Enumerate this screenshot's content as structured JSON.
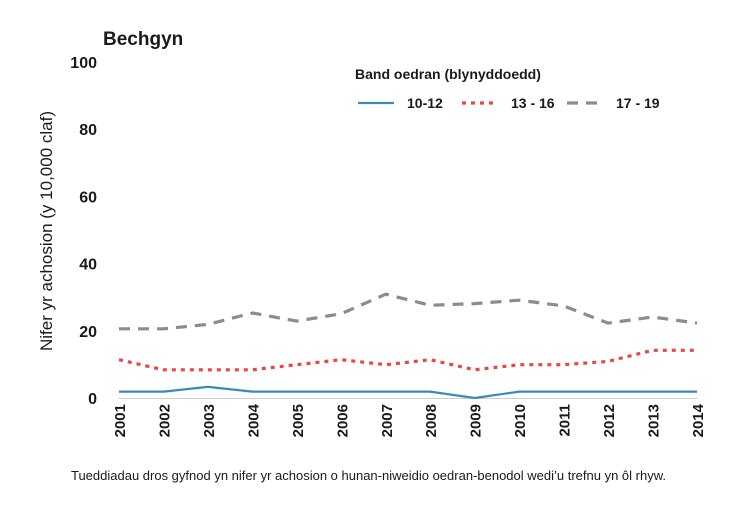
{
  "chart_data": {
    "type": "line",
    "title": "Bechgyn",
    "xlabel": "",
    "ylabel": "Nifer yr achosion (y 10,000 claf)",
    "ylim": [
      0,
      100
    ],
    "yticks": [
      "0",
      "20",
      "40",
      "60",
      "80",
      "100"
    ],
    "x": [
      "2001",
      "2002",
      "2003",
      "2004",
      "2005",
      "2006",
      "2007",
      "2008",
      "2009",
      "2010",
      "2011",
      "2012",
      "2013",
      "2014"
    ],
    "legend": {
      "title": "Band oedran (blynyddoedd)",
      "position": "top-right"
    },
    "series": [
      {
        "name": "10-12",
        "style": "solid",
        "color": "#3d8ab8",
        "values": [
          1.9,
          1.9,
          3.3,
          1.9,
          1.9,
          1.9,
          1.9,
          1.9,
          0.0,
          1.9,
          1.9,
          1.9,
          1.9,
          1.9
        ]
      },
      {
        "name": "13 - 16",
        "style": "dotted",
        "color": "#e8474a",
        "values": [
          11.4,
          8.4,
          8.4,
          8.4,
          9.9,
          11.4,
          9.9,
          11.4,
          8.4,
          9.9,
          9.9,
          10.9,
          14.2,
          14.2
        ]
      },
      {
        "name": "17 - 19",
        "style": "dashed",
        "color": "#8c8c8c",
        "values": [
          20.6,
          20.6,
          21.9,
          25.3,
          22.9,
          25.1,
          30.9,
          27.6,
          28.1,
          29.1,
          27.4,
          22.3,
          24.1,
          22.3
        ]
      }
    ]
  },
  "caption": "Tueddiadau dros gyfnod yn nifer yr achosion o hunan-niweidio oedran-benodol wedi’u trefnu yn ôl rhyw."
}
